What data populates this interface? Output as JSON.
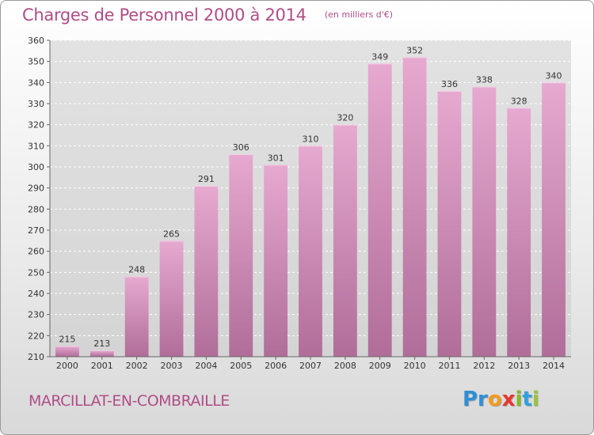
{
  "header": {
    "title": "Charges de Personnel 2000 à 2014",
    "subtitle": "(en milliers d'€)"
  },
  "footer": {
    "place": "MARCILLAT-EN-COMBRAILLE",
    "logo_parts": [
      "Pr",
      "o",
      "x",
      "i",
      "t",
      "i"
    ]
  },
  "colors": {
    "accent": "#b04d87",
    "bar_top": "#e6a9d0",
    "bar_bottom": "#b06d99"
  },
  "chart_data": {
    "type": "bar",
    "title": "Charges de Personnel 2000 à 2014",
    "subtitle": "(en milliers d'€)",
    "xlabel": "",
    "ylabel": "",
    "categories": [
      "2000",
      "2001",
      "2002",
      "2003",
      "2004",
      "2005",
      "2006",
      "2007",
      "2008",
      "2009",
      "2010",
      "2011",
      "2012",
      "2013",
      "2014"
    ],
    "values": [
      215,
      213,
      248,
      265,
      291,
      306,
      301,
      310,
      320,
      349,
      352,
      336,
      338,
      328,
      340
    ],
    "ylim": [
      210,
      360
    ],
    "yticks": [
      210,
      220,
      230,
      240,
      250,
      260,
      270,
      280,
      290,
      300,
      310,
      320,
      330,
      340,
      350,
      360
    ],
    "grid": true,
    "legend": "none"
  }
}
